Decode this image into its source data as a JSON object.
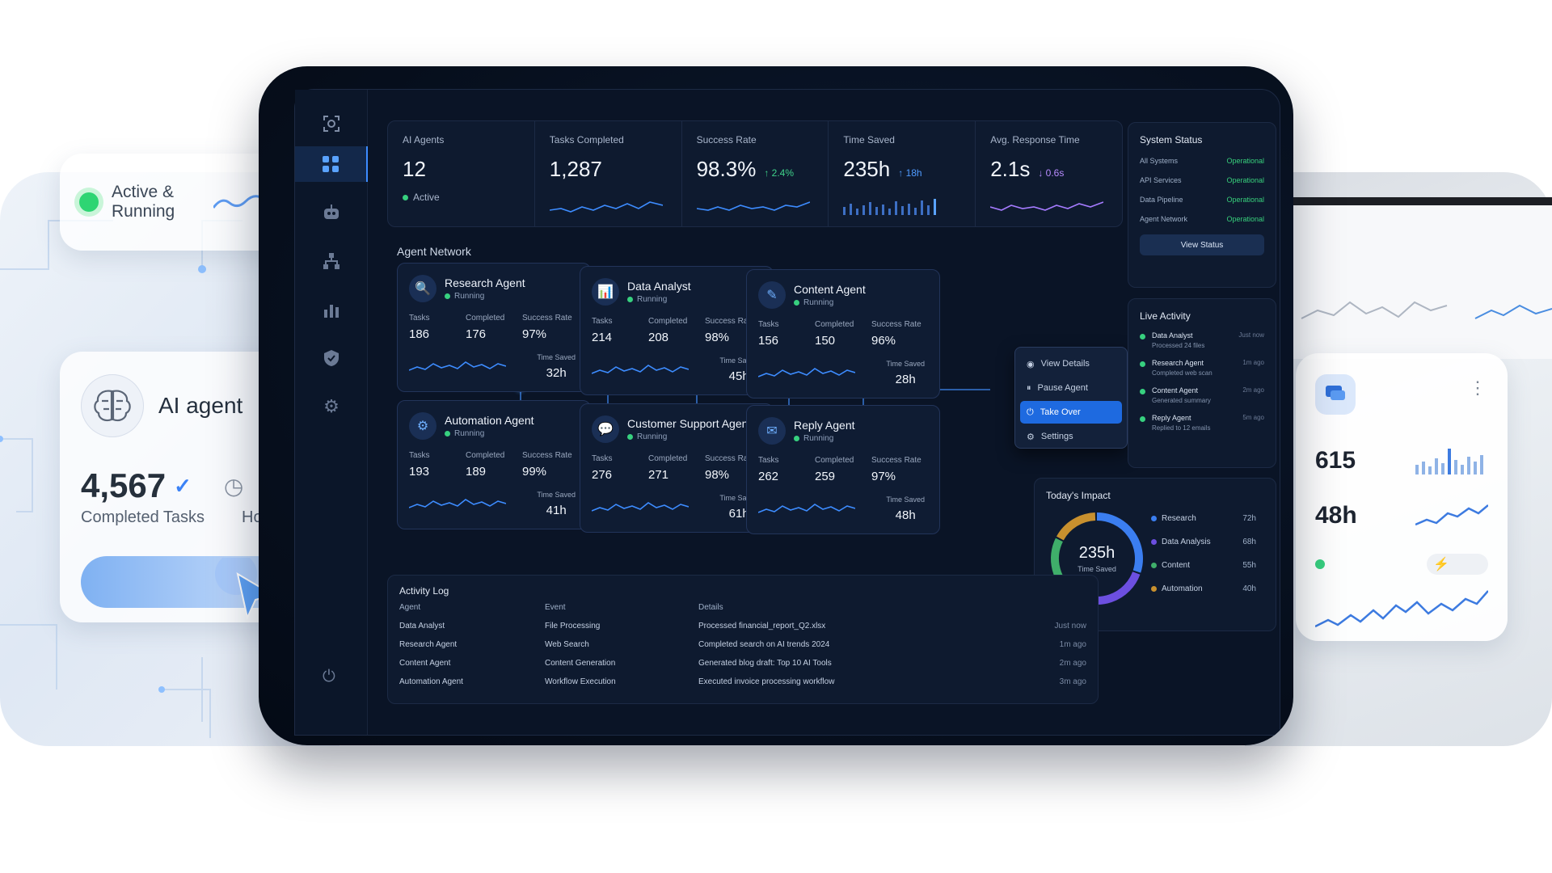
{
  "left_panel": {
    "status_label": "Active & Running",
    "card_title": "AI agent",
    "completed_value": "4,567",
    "completed_label": "Completed Tasks",
    "clipped_label": "Ho"
  },
  "right_panel": {
    "metric_1": "615",
    "metric_2": "48h"
  },
  "kpis": [
    {
      "label": "AI Agents",
      "value": "12",
      "sub": "Active"
    },
    {
      "label": "Tasks Completed",
      "value": "1,287"
    },
    {
      "label": "Success Rate",
      "value": "98.3%",
      "delta": "↑ 2.4%"
    },
    {
      "label": "Time Saved",
      "value": "235h",
      "delta": "↑ 18h"
    },
    {
      "label": "Avg. Response Time",
      "value": "2.1s",
      "delta": "↓ 0.6s"
    }
  ],
  "network_title": "Agent Network",
  "stat_labels": {
    "tasks": "Tasks",
    "completed": "Completed",
    "success": "Success Rate",
    "time_saved": "Time Saved"
  },
  "agents": [
    {
      "name": "Research Agent",
      "status": "Running",
      "tasks": "186",
      "completed": "176",
      "success": "97%",
      "time_saved": "32h"
    },
    {
      "name": "Data Analyst",
      "status": "Running",
      "tasks": "214",
      "completed": "208",
      "success": "98%",
      "time_saved": "45h"
    },
    {
      "name": "Content Agent",
      "status": "Running",
      "tasks": "156",
      "completed": "150",
      "success": "96%",
      "time_saved": "28h"
    },
    {
      "name": "Automation Agent",
      "status": "Running",
      "tasks": "193",
      "completed": "189",
      "success": "99%",
      "time_saved": "41h"
    },
    {
      "name": "Customer Support Agent",
      "status": "Running",
      "tasks": "276",
      "completed": "271",
      "success": "98%",
      "time_saved": "61h"
    },
    {
      "name": "Reply Agent",
      "status": "Running",
      "tasks": "262",
      "completed": "259",
      "success": "97%",
      "time_saved": "48h"
    }
  ],
  "context_menu": [
    "View Details",
    "Pause Agent",
    "Take Over",
    "Settings"
  ],
  "system_status": {
    "title": "System Status",
    "rows": [
      {
        "name": "All Systems",
        "state": "Operational"
      },
      {
        "name": "API Services",
        "state": "Operational"
      },
      {
        "name": "Data Pipeline",
        "state": "Operational"
      },
      {
        "name": "Agent Network",
        "state": "Operational"
      }
    ],
    "button": "View Status"
  },
  "live_activity": {
    "title": "Live Activity",
    "events": [
      {
        "agent": "Data Analyst",
        "detail": "Processed 24 files",
        "time": "Just now"
      },
      {
        "agent": "Research Agent",
        "detail": "Completed web scan",
        "time": "1m ago"
      },
      {
        "agent": "Content Agent",
        "detail": "Generated summary",
        "time": "2m ago"
      },
      {
        "agent": "Reply Agent",
        "detail": "Replied to 12 emails",
        "time": "5m ago"
      }
    ]
  },
  "impact": {
    "title": "Today's Impact",
    "total": "235h",
    "total_label": "Time Saved",
    "items": [
      {
        "name": "Research",
        "value": "72h",
        "color": "#3b7ef0"
      },
      {
        "name": "Data Analysis",
        "value": "68h",
        "color": "#6c4fe0"
      },
      {
        "name": "Content",
        "value": "55h",
        "color": "#3fae6a"
      },
      {
        "name": "Automation",
        "value": "40h",
        "color": "#c8902e"
      }
    ]
  },
  "activity_log": {
    "title": "Activity Log",
    "headers": [
      "Agent",
      "Event",
      "Details"
    ],
    "rows": [
      {
        "agent": "Data Analyst",
        "event": "File Processing",
        "details": "Processed financial_report_Q2.xlsx",
        "time": "Just now"
      },
      {
        "agent": "Research Agent",
        "event": "Web Search",
        "details": "Completed search on AI trends 2024",
        "time": "1m ago"
      },
      {
        "agent": "Content Agent",
        "event": "Content Generation",
        "details": "Generated blog draft: Top 10 AI Tools",
        "time": "2m ago"
      },
      {
        "agent": "Automation Agent",
        "event": "Workflow Execution",
        "details": "Executed invoice processing workflow",
        "time": "3m ago"
      }
    ]
  },
  "colors": {
    "accent": "#3d8cff",
    "positive": "#37d07f",
    "background": "#0a1426"
  }
}
